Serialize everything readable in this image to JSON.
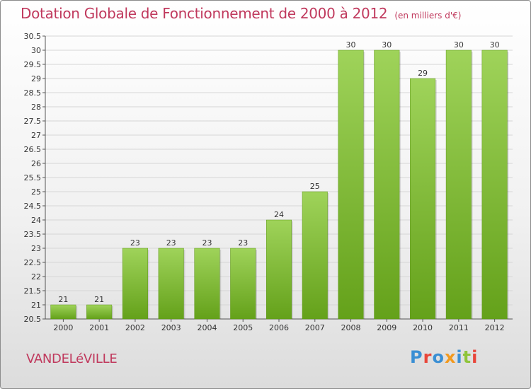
{
  "header": {
    "title": "Dotation Globale de Fonctionnement de 2000 à 2012",
    "unit": "(en milliers d'€)"
  },
  "footer": {
    "commune": "VANDELéVILLE",
    "brand": "Proxiti",
    "brand_colors": [
      "#3a8fd4",
      "#e8463a",
      "#3a8fd4",
      "#f29a1f",
      "#3a8fd4",
      "#8fc43a",
      "#e8463a"
    ]
  },
  "colors": {
    "bar_top": "#9fd35a",
    "bar_bottom": "#64a11a",
    "accent": "#c0395d",
    "grid": "#d6d6d6"
  },
  "chart_data": {
    "type": "bar",
    "categories": [
      "2000",
      "2001",
      "2002",
      "2003",
      "2004",
      "2005",
      "2006",
      "2007",
      "2008",
      "2009",
      "2010",
      "2011",
      "2012"
    ],
    "values": [
      21,
      21,
      23,
      23,
      23,
      23,
      24,
      25,
      30,
      30,
      29,
      30,
      30
    ],
    "data_labels": [
      "21",
      "21",
      "23",
      "23",
      "23",
      "23",
      "24",
      "25",
      "30",
      "30",
      "29",
      "30",
      "30"
    ],
    "title": "Dotation Globale de Fonctionnement de 2000 à 2012",
    "xlabel": "",
    "ylabel": "",
    "ylim": [
      20.5,
      30.5
    ],
    "yticks": [
      "20.5",
      "21",
      "21.5",
      "22",
      "22.5",
      "23",
      "23.5",
      "24",
      "24.5",
      "25",
      "25.5",
      "26",
      "26.5",
      "27",
      "27.5",
      "28",
      "28.5",
      "29",
      "29.5",
      "30",
      "30.5"
    ],
    "grid": true,
    "legend": "none"
  }
}
